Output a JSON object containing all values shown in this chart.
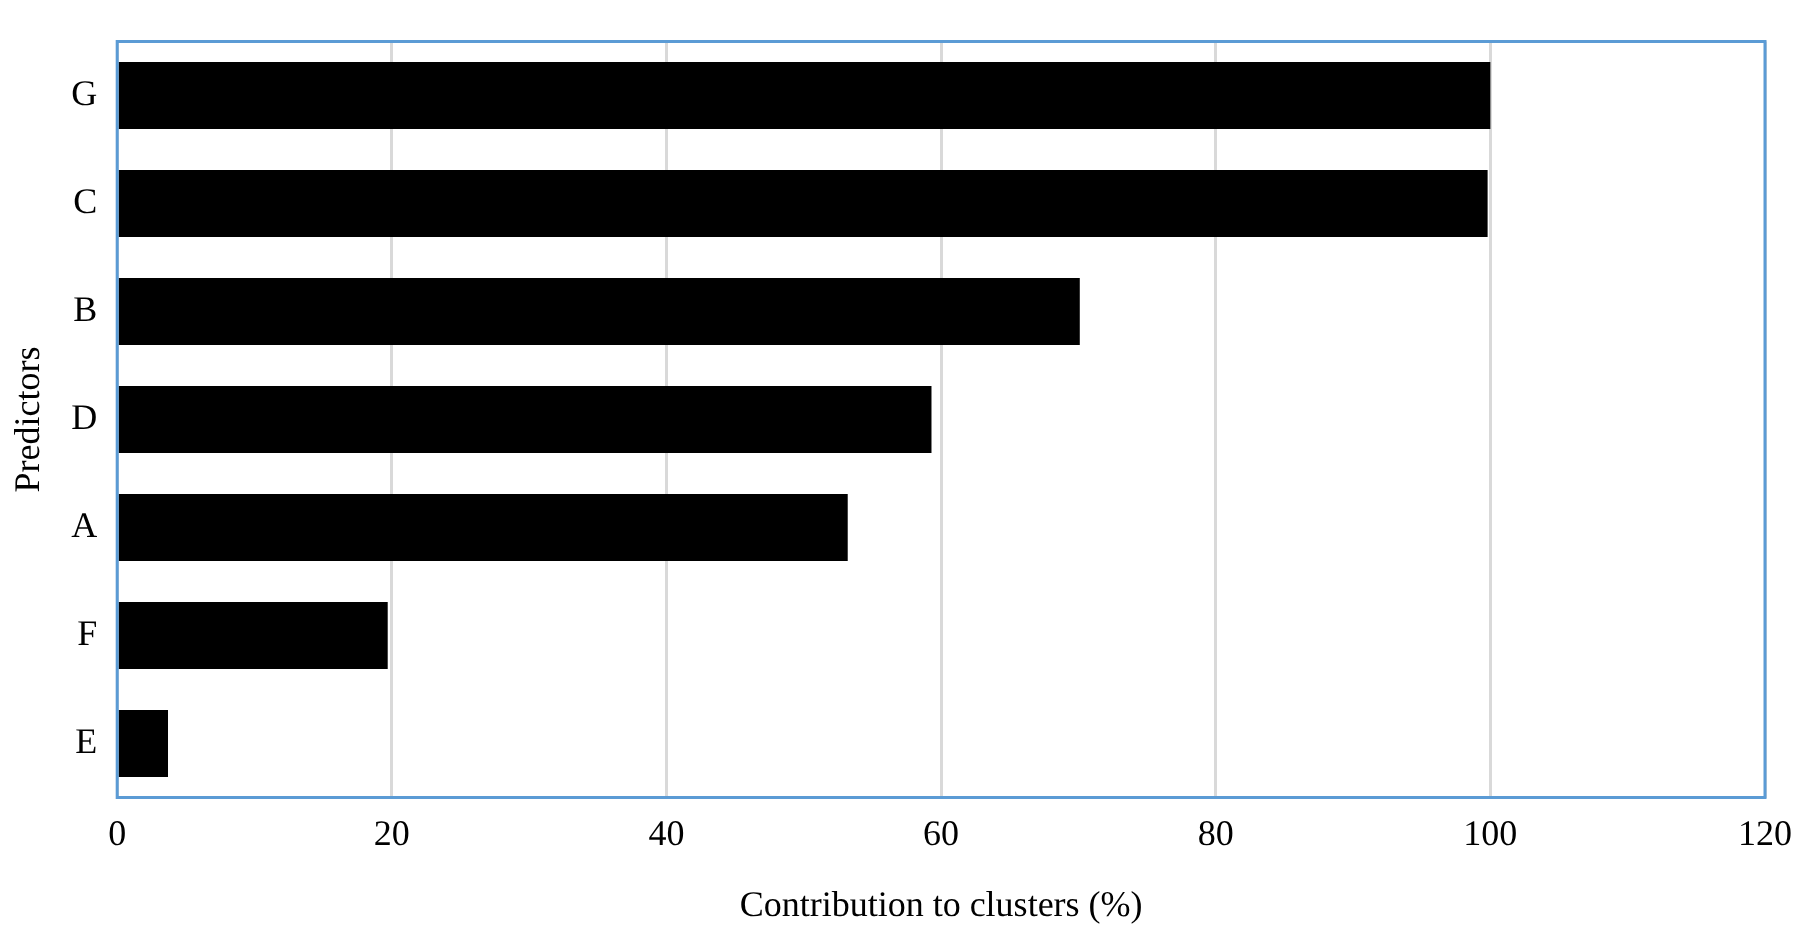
{
  "chart_data": {
    "type": "bar",
    "orientation": "horizontal",
    "xlabel": "Contribution to clusters (%)",
    "ylabel": "Predictors",
    "categories": [
      "G",
      "C",
      "B",
      "D",
      "A",
      "F",
      "E"
    ],
    "values": [
      100,
      99.8,
      70.1,
      59.3,
      53.2,
      19.7,
      3.7
    ],
    "color": "#000000",
    "xlim": [
      0,
      120
    ],
    "xticks": [
      0,
      20,
      40,
      60,
      80,
      100,
      120
    ],
    "grid": "x",
    "legend": false
  }
}
